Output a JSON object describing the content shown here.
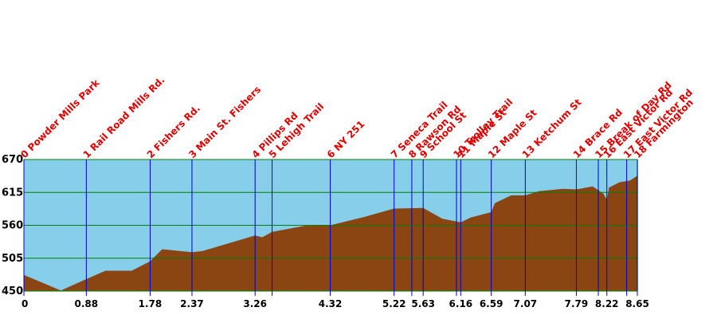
{
  "chart_data": {
    "type": "area",
    "title": "",
    "xlabel": "",
    "ylabel": "",
    "xlim": [
      0,
      8.65
    ],
    "ylim": [
      450,
      670
    ],
    "y_ticks": [
      450,
      505,
      560,
      615,
      670
    ],
    "x_ticks": [
      0,
      0.88,
      1.78,
      2.37,
      3.26,
      4.32,
      5.22,
      5.63,
      6.16,
      6.59,
      7.07,
      7.79,
      8.22,
      8.65
    ],
    "grid": true,
    "colors": {
      "sky": "#87ceeb",
      "terrain": "#8b4513",
      "gridline": "#008000",
      "waypoint_line": "#0000cc",
      "label": "#e00000"
    },
    "elevation_profile": {
      "x": [
        0,
        0.52,
        0.88,
        1.15,
        1.52,
        1.78,
        1.95,
        2.37,
        2.52,
        3.26,
        3.36,
        3.5,
        4.0,
        4.32,
        4.8,
        5.22,
        5.63,
        5.9,
        6.16,
        6.3,
        6.59,
        6.64,
        6.87,
        7.07,
        7.26,
        7.6,
        7.79,
        8.02,
        8.17,
        8.22,
        8.25,
        8.4,
        8.55,
        8.65
      ],
      "y": [
        477,
        451,
        470,
        484,
        484,
        500,
        520,
        515,
        517,
        543,
        540,
        549,
        560,
        560,
        574,
        588,
        589,
        571,
        565,
        573,
        582,
        597,
        610,
        610,
        617,
        621,
        620,
        625,
        613,
        603,
        623,
        632,
        635,
        643
      ]
    },
    "waypoints": [
      {
        "label": "0 Powder Mills Park",
        "x": 0
      },
      {
        "label": "1 Rail Road Mills Rd.",
        "x": 0.88
      },
      {
        "label": "2 Fishers Rd.",
        "x": 1.78
      },
      {
        "label": "3 Main St. Fishers",
        "x": 2.37
      },
      {
        "label": "4 Pillips Rd",
        "x": 3.26
      },
      {
        "label": "5 Lehigh Trail",
        "x": 3.5
      },
      {
        "label": "6 NY 251",
        "x": 4.32
      },
      {
        "label": "7 Seneca Trail",
        "x": 5.22
      },
      {
        "label": "8 Rawson Rd",
        "x": 5.47
      },
      {
        "label": "9 School St",
        "x": 5.63
      },
      {
        "label": "10 Trolley Trail",
        "x": 6.1
      },
      {
        "label": "11 Maple St",
        "x": 6.16
      },
      {
        "label": "12 Maple St",
        "x": 6.59
      },
      {
        "label": "13 Ketchum St",
        "x": 7.07
      },
      {
        "label": "14 Brace Rd",
        "x": 7.79
      },
      {
        "label": "15 Break of Day Rd",
        "x": 8.1
      },
      {
        "label": "16 East Victor Rd",
        "x": 8.22
      },
      {
        "label": "17 East Victor Rd",
        "x": 8.5
      },
      {
        "label": "18 Farmington",
        "x": 8.65
      }
    ]
  }
}
